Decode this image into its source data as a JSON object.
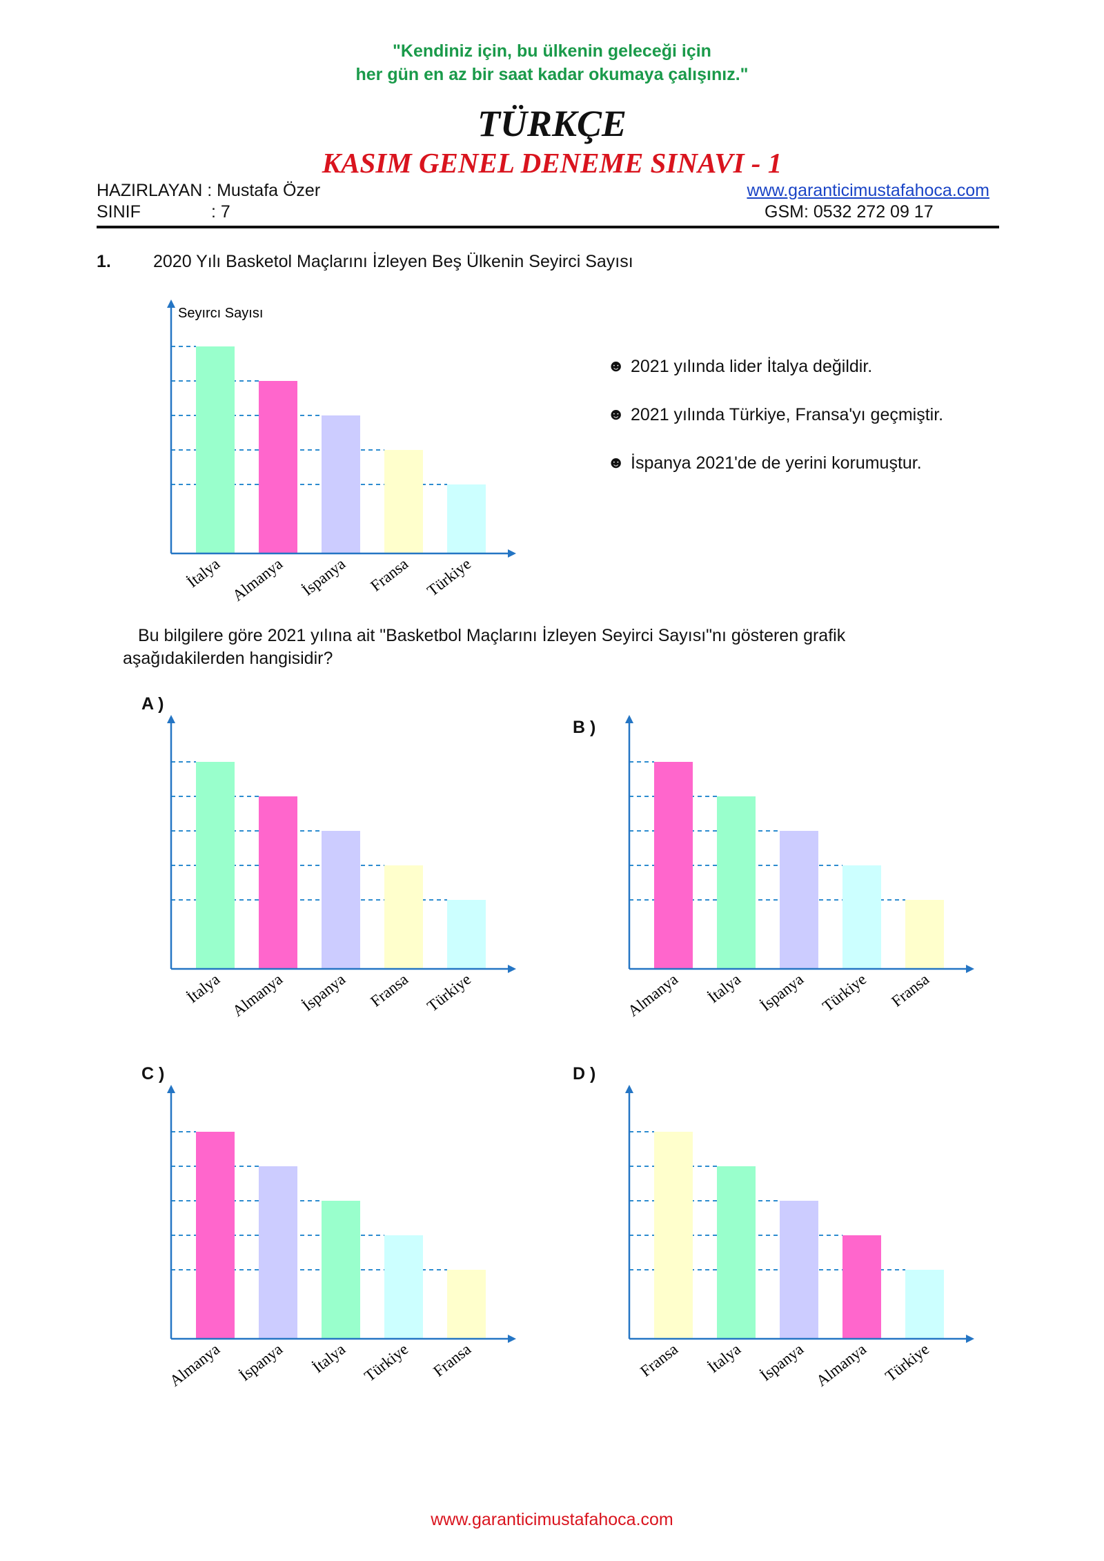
{
  "header": {
    "quote_line1": "\"Kendiniz için, bu ülkenin geleceği için",
    "quote_line2": "her gün en az bir saat kadar okumaya çalışınız.\"",
    "subject": "TÜRKÇE",
    "exam_title": "KASIM GENEL DENEME SINAVI - 1",
    "author_label": "HAZIRLAYAN : Mustafa Özer",
    "class_label": "SINIF",
    "class_value": ": 7",
    "website": "www.garanticimustafahoca.com",
    "gsm": "GSM: 0532 272 09 17"
  },
  "question": {
    "number": "1.",
    "title": "2020 Yılı Basketol Maçlarını İzleyen Beş Ülkenin Seyirci Sayısı",
    "bullet_symbol": "☻",
    "bullets": [
      "2021 yılında lider İtalya değildir.",
      "2021 yılında Türkiye, Fransa'yı geçmiştir.",
      "İspanya 2021'de de yerini korumuştur."
    ],
    "prompt_line1": "Bu bilgilere göre 2021 yılına ait \"Basketbol Maçlarını İzleyen Seyirci Sayısı\"nı gösteren grafik",
    "prompt_line2": "aşağıdakilerden hangisidir?",
    "options": {
      "a": "A )",
      "b": "B )",
      "c": "C )",
      "d": "D )"
    }
  },
  "colors": {
    "İtalya": "#99ffcc",
    "Almanya": "#ff66cc",
    "İspanya": "#ccccff",
    "Fransa": "#ffffcc",
    "Türkiye": "#ccffff",
    "axis": "#2475c4",
    "gridline": "#2d8ccf"
  },
  "chart_data": [
    {
      "id": "main",
      "type": "bar",
      "ylabel": "Seyırcı Sayısı",
      "categories": [
        "İtalya",
        "Almanya",
        "İspanya",
        "Fransa",
        "Türkiye"
      ],
      "values": [
        5,
        4,
        3,
        2,
        1
      ],
      "grid": "dashed"
    },
    {
      "id": "A",
      "type": "bar",
      "categories": [
        "İtalya",
        "Almanya",
        "İspanya",
        "Fransa",
        "Türkiye"
      ],
      "values": [
        5,
        4,
        3,
        2,
        1
      ]
    },
    {
      "id": "B",
      "type": "bar",
      "categories": [
        "Almanya",
        "İtalya",
        "İspanya",
        "Türkiye",
        "Fransa"
      ],
      "values": [
        5,
        4,
        3,
        2,
        1
      ]
    },
    {
      "id": "C",
      "type": "bar",
      "categories": [
        "Almanya",
        "İspanya",
        "İtalya",
        "Türkiye",
        "Fransa"
      ],
      "values": [
        5,
        4,
        3,
        2,
        1
      ]
    },
    {
      "id": "D",
      "type": "bar",
      "categories": [
        "Fransa",
        "İtalya",
        "İspanya",
        "Almanya",
        "Türkiye"
      ],
      "values": [
        5,
        4,
        3,
        2,
        1
      ]
    }
  ],
  "footer": {
    "website": "www.garanticimustafahoca.com"
  }
}
